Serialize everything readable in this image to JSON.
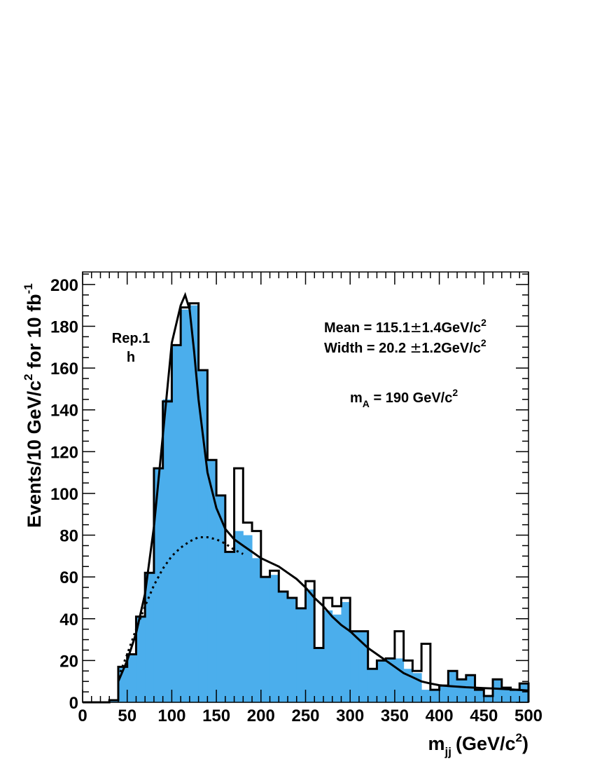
{
  "chart_data": {
    "type": "bar",
    "bin_width": 10,
    "x": [
      0,
      10,
      20,
      30,
      40,
      50,
      60,
      70,
      80,
      90,
      100,
      110,
      120,
      130,
      140,
      150,
      160,
      170,
      180,
      190,
      200,
      210,
      220,
      230,
      240,
      250,
      260,
      270,
      280,
      290,
      300,
      310,
      320,
      330,
      340,
      350,
      360,
      370,
      380,
      390,
      400,
      410,
      420,
      430,
      440,
      450,
      460,
      470,
      480,
      490
    ],
    "hist_fill": [
      0,
      0,
      0,
      1,
      17,
      23,
      41,
      62,
      112,
      145,
      171,
      188,
      190,
      159,
      116,
      99,
      72,
      82,
      80,
      69,
      60,
      61,
      53,
      50,
      45,
      54,
      26,
      44,
      42,
      48,
      34,
      34,
      16,
      20,
      21,
      21,
      16,
      14,
      6,
      6,
      8,
      15,
      11,
      13,
      6,
      3,
      11,
      7,
      6,
      9
    ],
    "hist_outline": [
      0,
      0,
      0,
      1,
      17,
      23,
      41,
      62,
      112,
      144,
      171,
      189,
      191,
      159,
      116,
      99,
      72,
      112,
      86,
      82,
      60,
      63,
      53,
      50,
      45,
      58,
      26,
      50,
      46,
      50,
      34,
      34,
      16,
      20,
      21,
      34,
      20,
      15,
      28,
      6,
      8,
      15,
      11,
      13,
      6,
      3,
      11,
      7,
      6,
      9
    ],
    "fit_total": {
      "x": [
        40,
        50,
        60,
        70,
        80,
        90,
        100,
        110,
        115,
        120,
        125,
        130,
        140,
        150,
        160,
        170,
        180,
        190,
        200,
        210,
        220,
        230,
        240,
        250,
        260,
        270,
        280,
        290,
        300,
        310,
        320,
        330,
        340,
        350,
        360,
        370,
        380,
        390,
        400,
        410,
        420,
        430,
        440,
        450,
        460,
        470,
        480,
        490,
        500
      ],
      "y": [
        10,
        20,
        33,
        52,
        84,
        128,
        172,
        190,
        195,
        188,
        168,
        145,
        110,
        93,
        83,
        78,
        75,
        72,
        69,
        67,
        65,
        62,
        59,
        55,
        50,
        46,
        41,
        37,
        34,
        30,
        26,
        23,
        20,
        17,
        14,
        12,
        10,
        9,
        8.2,
        7.8,
        7.5,
        7.2,
        7.0,
        6.8,
        6.6,
        6.4,
        6.2,
        5.9,
        5.6
      ]
    },
    "fit_background": {
      "x": [
        40,
        50,
        60,
        70,
        80,
        90,
        100,
        110,
        120,
        130,
        140,
        150,
        160,
        170,
        180
      ],
      "y": [
        12,
        23,
        35,
        46,
        56,
        64,
        70,
        74,
        77,
        79,
        79,
        78,
        76,
        73,
        71
      ]
    },
    "xlabel": "m",
    "xlabel_sub": "jj",
    "xlabel_unit": "(GeV/c",
    "xlabel_unit_sup": "2",
    "xlabel_unit_end": ")",
    "ylabel": "Events/10 GeV/c",
    "ylabel_sup1": "2",
    "ylabel_mid": " for 10 fb",
    "ylabel_sup2": "-1",
    "xlim": [
      0,
      500
    ],
    "ylim": [
      0,
      206
    ],
    "xticks": [
      0,
      50,
      100,
      150,
      200,
      250,
      300,
      350,
      400,
      450,
      500
    ],
    "yticks": [
      0,
      20,
      40,
      60,
      80,
      100,
      120,
      140,
      160,
      180,
      200
    ],
    "fill_color": "#4baeec",
    "annotations": {
      "label_line1": "Rep.1",
      "label_line2": "h",
      "mean": "Mean = 115.1",
      "mean_pm": "±",
      "mean_err": "1.4GeV/c",
      "mean_sup": "2",
      "width": "Width = 20.2 ",
      "width_pm": "±",
      "width_err": "1.2GeV/c",
      "width_sup": "2",
      "mass_prefix": "m",
      "mass_sub": "A",
      "mass_value": " = 190 GeV/c",
      "mass_sup": "2"
    }
  }
}
